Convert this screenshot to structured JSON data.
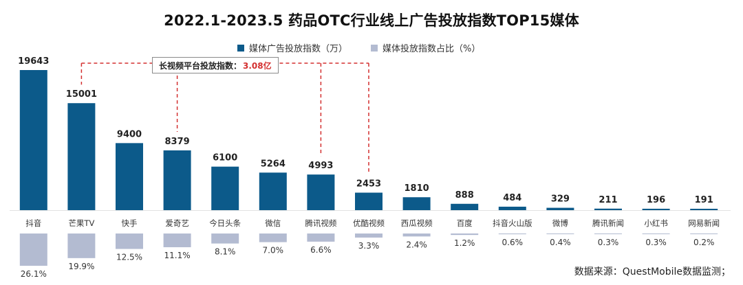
{
  "title": "2022.1-2023.5 药品OTC行业线上广告投放指数TOP15媒体",
  "legend": {
    "series1": "媒体广告投放指数（万）",
    "series2": "媒体投放指数占比（%）"
  },
  "callout": {
    "label": "长视频平台投放指数：",
    "value": "3.08亿"
  },
  "source": "数据来源：QuestMobile数据监测；",
  "colors": {
    "bar": "#0c5a8a",
    "share": "#b3bbd1",
    "callout_line": "#d32f2f"
  },
  "chart_data": {
    "type": "bar",
    "categories": [
      "抖音",
      "芒果TV",
      "快手",
      "爱奇艺",
      "今日头条",
      "微信",
      "腾讯视频",
      "优酷视频",
      "西瓜视频",
      "百度",
      "抖音火山版",
      "微博",
      "腾讯新闻",
      "小红书",
      "网易新闻"
    ],
    "series": [
      {
        "name": "媒体广告投放指数（万）",
        "values": [
          19643,
          15001,
          9400,
          8379,
          6100,
          5264,
          4993,
          2453,
          1810,
          888,
          484,
          329,
          211,
          196,
          191
        ],
        "labels": [
          "19643",
          "15001",
          "9400",
          "8379",
          "6100",
          "5264",
          "4993",
          "2453",
          "1810",
          "888",
          "484",
          "329",
          "211",
          "196",
          "191"
        ]
      },
      {
        "name": "媒体投放指数占比（%）",
        "values": [
          26.1,
          19.9,
          12.5,
          11.1,
          8.1,
          7.0,
          6.6,
          3.3,
          2.4,
          1.2,
          0.6,
          0.4,
          0.3,
          0.3,
          0.2
        ],
        "labels": [
          "26.1%",
          "19.9%",
          "12.5%",
          "11.1%",
          "8.1%",
          "7.0%",
          "6.6%",
          "3.3%",
          "2.4%",
          "1.2%",
          "0.6%",
          "0.4%",
          "0.3%",
          "0.3%",
          "0.2%"
        ]
      }
    ],
    "highlighted_categories": [
      "芒果TV",
      "爱奇艺",
      "腾讯视频",
      "优酷视频"
    ]
  }
}
